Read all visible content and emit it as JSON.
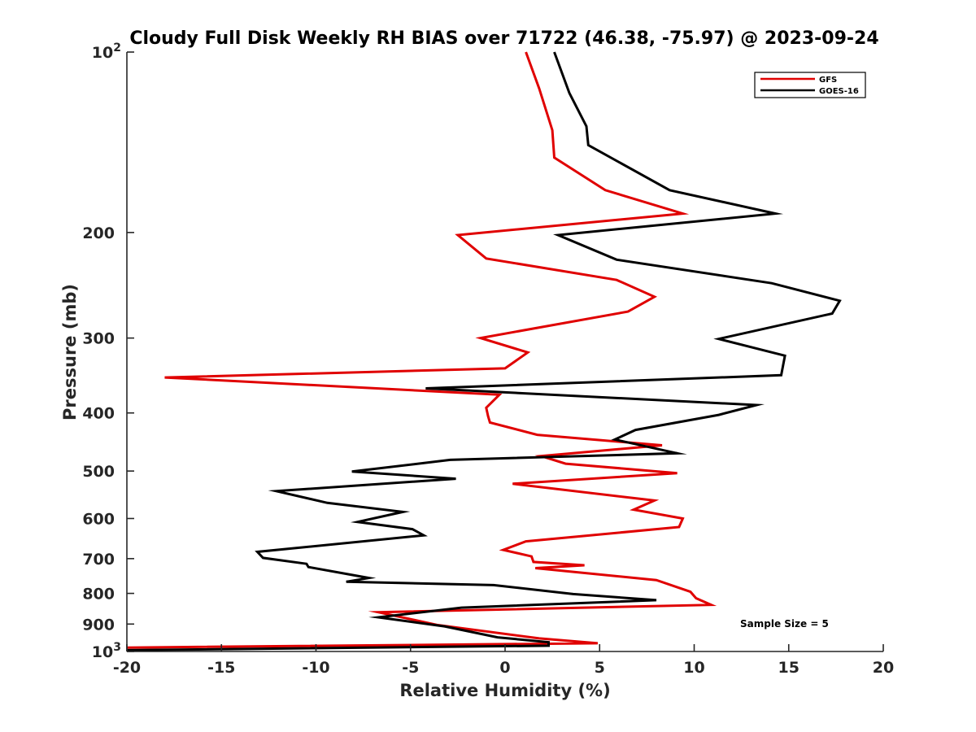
{
  "chart_data": {
    "type": "line",
    "title": "Cloudy Full Disk Weekly RH BIAS over 71722 (46.38, -75.97) @ 2023-09-24",
    "xlabel": "Relative Humidity (%)",
    "ylabel": "Pressure (mb)",
    "xlim": [
      -20,
      20
    ],
    "ylim": [
      100,
      1000
    ],
    "yscale": "log",
    "y_reversed": true,
    "x_ticks": [
      "-20",
      "-15",
      "-10",
      "-5",
      "0",
      "5",
      "10",
      "15",
      "20"
    ],
    "y_ticks": [
      {
        "value": 100,
        "label": "10",
        "sup": "2"
      },
      {
        "value": 200,
        "label": "200",
        "sup": ""
      },
      {
        "value": 300,
        "label": "300",
        "sup": ""
      },
      {
        "value": 400,
        "label": "400",
        "sup": ""
      },
      {
        "value": 500,
        "label": "500",
        "sup": ""
      },
      {
        "value": 600,
        "label": "600",
        "sup": ""
      },
      {
        "value": 700,
        "label": "700",
        "sup": ""
      },
      {
        "value": 800,
        "label": "800",
        "sup": ""
      },
      {
        "value": 900,
        "label": "900",
        "sup": ""
      },
      {
        "value": 1000,
        "label": "10",
        "sup": "3"
      }
    ],
    "legend": {
      "position": "top-right",
      "entries": [
        {
          "name": "GFS",
          "color": "#e00000"
        },
        {
          "name": "GOES-16",
          "color": "#000000"
        }
      ]
    },
    "annotation": "Sample Size = 5",
    "grid": false,
    "series": [
      {
        "name": "GFS",
        "color": "#e00000",
        "points": [
          [
            1.1,
            100
          ],
          [
            1.8,
            115
          ],
          [
            2.5,
            135
          ],
          [
            2.6,
            150
          ],
          [
            5.3,
            170
          ],
          [
            9.4,
            186
          ],
          [
            -2.5,
            202
          ],
          [
            -1.0,
            221
          ],
          [
            5.9,
            240
          ],
          [
            7.9,
            256
          ],
          [
            6.5,
            271
          ],
          [
            -1.3,
            300
          ],
          [
            1.2,
            317
          ],
          [
            0.0,
            337
          ],
          [
            -18.0,
            349
          ],
          [
            -0.3,
            373
          ],
          [
            -1.0,
            392
          ],
          [
            -0.9,
            405
          ],
          [
            -0.8,
            415
          ],
          [
            1.7,
            435
          ],
          [
            8.3,
            453
          ],
          [
            1.9,
            472
          ],
          [
            3.2,
            486
          ],
          [
            9.1,
            504
          ],
          [
            0.4,
            525
          ],
          [
            7.9,
            560
          ],
          [
            6.8,
            580
          ],
          [
            9.4,
            600
          ],
          [
            9.2,
            620
          ],
          [
            1.1,
            655
          ],
          [
            -0.1,
            677
          ],
          [
            1.4,
            694
          ],
          [
            1.5,
            709
          ],
          [
            4.2,
            718
          ],
          [
            1.6,
            726
          ],
          [
            8.0,
            760
          ],
          [
            9.8,
            795
          ],
          [
            10.1,
            815
          ],
          [
            10.9,
            836
          ],
          [
            -6.7,
            860
          ],
          [
            -3.6,
            903
          ],
          [
            1.8,
            951
          ],
          [
            4.9,
            969
          ],
          [
            -20.0,
            985
          ]
        ]
      },
      {
        "name": "GOES-16",
        "color": "#000000",
        "points": [
          [
            2.6,
            100
          ],
          [
            3.4,
            117
          ],
          [
            4.3,
            133
          ],
          [
            4.4,
            143
          ],
          [
            8.7,
            170
          ],
          [
            14.3,
            186
          ],
          [
            2.8,
            202
          ],
          [
            5.9,
            222
          ],
          [
            14.1,
            243
          ],
          [
            17.7,
            260
          ],
          [
            17.3,
            273
          ],
          [
            11.3,
            301
          ],
          [
            14.8,
            321
          ],
          [
            14.6,
            346
          ],
          [
            -4.2,
            364
          ],
          [
            13.3,
            388
          ],
          [
            11.3,
            403
          ],
          [
            6.9,
            427
          ],
          [
            5.8,
            443
          ],
          [
            9.1,
            467
          ],
          [
            -2.9,
            479
          ],
          [
            -8.1,
            501
          ],
          [
            -2.6,
            515
          ],
          [
            -12.1,
            540
          ],
          [
            -9.4,
            565
          ],
          [
            -5.4,
            585
          ],
          [
            -7.8,
            608
          ],
          [
            -4.9,
            625
          ],
          [
            -4.3,
            640
          ],
          [
            -13.1,
            682
          ],
          [
            -12.8,
            698
          ],
          [
            -10.5,
            714
          ],
          [
            -10.4,
            723
          ],
          [
            -7.2,
            754
          ],
          [
            -8.4,
            765
          ],
          [
            -0.6,
            775
          ],
          [
            3.6,
            802
          ],
          [
            8.0,
            821
          ],
          [
            -2.3,
            845
          ],
          [
            -6.7,
            877
          ],
          [
            -3.2,
            908
          ],
          [
            -0.4,
            947
          ],
          [
            2.3,
            965
          ],
          [
            2.3,
            978
          ],
          [
            -20.0,
            995
          ]
        ]
      }
    ]
  }
}
